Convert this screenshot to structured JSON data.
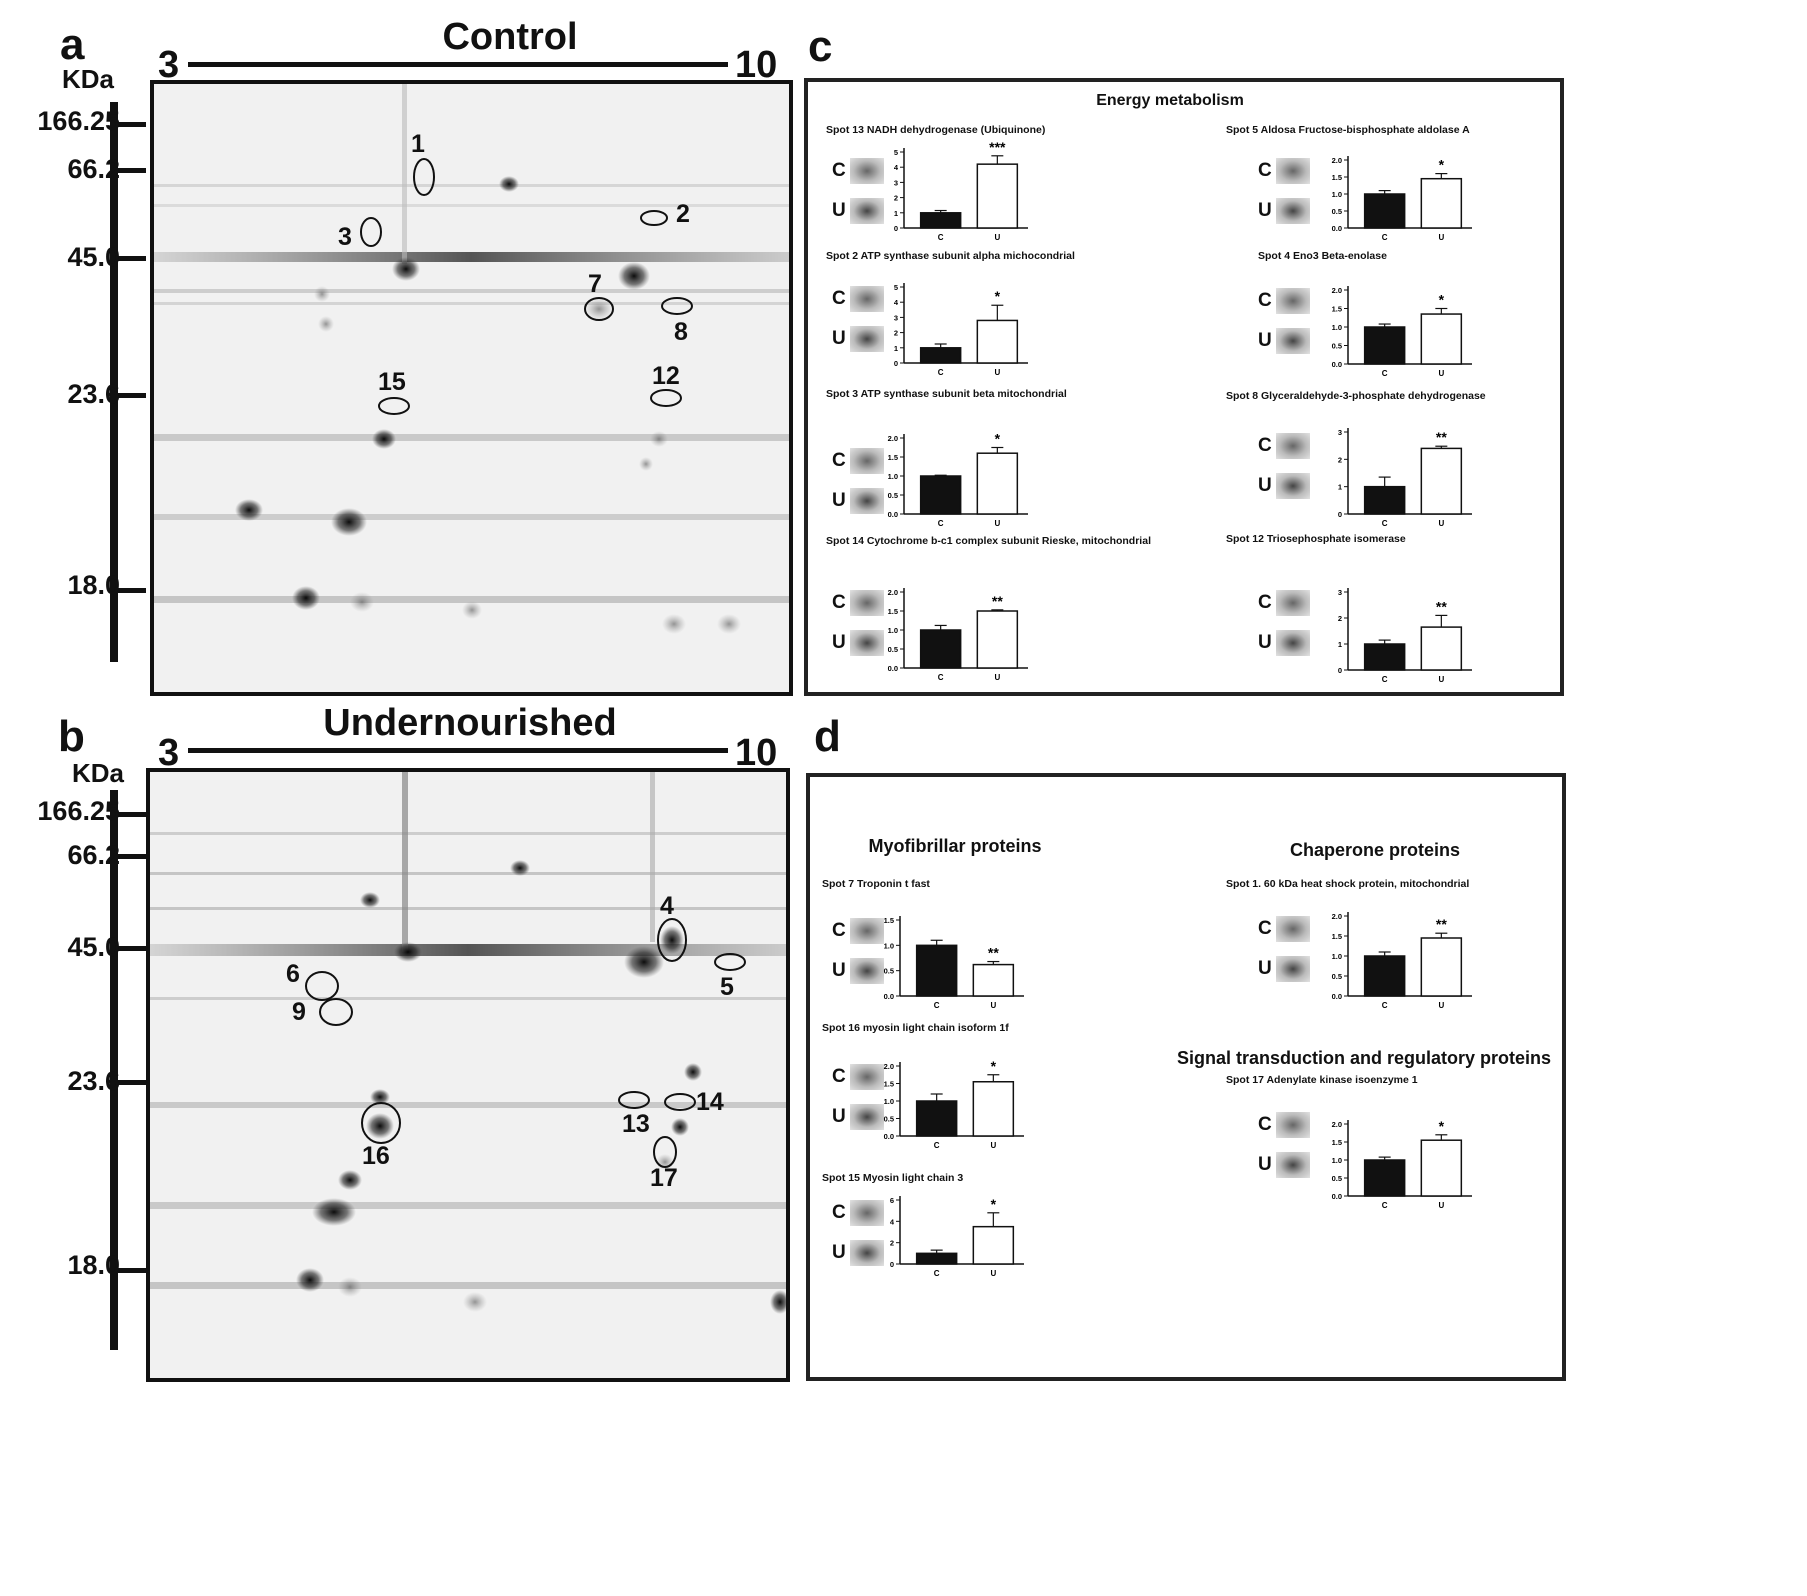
{
  "panels": {
    "a": {
      "label": "a",
      "title": "Control"
    },
    "b": {
      "label": "b",
      "title": "Undernourished"
    },
    "c": {
      "label": "c"
    },
    "d": {
      "label": "d"
    }
  },
  "ph_axis": {
    "start": "3",
    "end": "10"
  },
  "kda_label": "KDa",
  "mw_markers": [
    "166.25",
    "66.2",
    "45.0",
    "23.6",
    "18.0"
  ],
  "gel_a_spots": [
    "1",
    "2",
    "3",
    "7",
    "8",
    "12",
    "15"
  ],
  "gel_b_spots": [
    "4",
    "5",
    "6",
    "9",
    "13",
    "14",
    "16",
    "17"
  ],
  "groups": {
    "control": "C",
    "undernourished": "U"
  },
  "sections": {
    "energy": "Energy metabolism",
    "myofibrillar": "Myofibrillar proteins",
    "chaperone": "Chaperone proteins",
    "signal": "Signal transduction and regulatory proteins"
  },
  "chart_data": [
    {
      "type": "bar",
      "title": "Spot 13  NADH dehydrogenase (Ubiquinone)",
      "categories": [
        "C",
        "U"
      ],
      "values": [
        1.0,
        4.2
      ],
      "errors": [
        0.15,
        0.55
      ],
      "ylim": [
        0,
        5
      ],
      "yticks": [
        "0",
        "1",
        "2",
        "3",
        "4",
        "5"
      ],
      "significance": "***"
    },
    {
      "type": "bar",
      "title": "Spot 2 ATP synthase subunit alpha michocondrial",
      "categories": [
        "C",
        "U"
      ],
      "values": [
        1.0,
        2.8
      ],
      "errors": [
        0.25,
        1.0
      ],
      "ylim": [
        0,
        5
      ],
      "yticks": [
        "0",
        "1",
        "2",
        "3",
        "4",
        "5"
      ],
      "significance": "*"
    },
    {
      "type": "bar",
      "title": "Spot 3 ATP synthase subunit beta mitochondrial",
      "categories": [
        "C",
        "U"
      ],
      "values": [
        1.0,
        1.6
      ],
      "errors": [
        0.02,
        0.15
      ],
      "ylim": [
        0,
        2
      ],
      "yticks": [
        "0.0",
        "0.5",
        "1.0",
        "1.5",
        "2.0"
      ],
      "significance": "*"
    },
    {
      "type": "bar",
      "title": "Spot 14 Cytochrome b-c1 complex subunit Rieske, mitochondrial",
      "categories": [
        "C",
        "U"
      ],
      "values": [
        1.0,
        1.5
      ],
      "errors": [
        0.12,
        0.03
      ],
      "ylim": [
        0,
        2
      ],
      "yticks": [
        "0.0",
        "0.5",
        "1.0",
        "1.5",
        "2.0"
      ],
      "significance": "**"
    },
    {
      "type": "bar",
      "title": "Spot  5 Aldosa Fructose-bisphosphate aldolase A",
      "categories": [
        "C",
        "U"
      ],
      "values": [
        1.0,
        1.45
      ],
      "errors": [
        0.1,
        0.15
      ],
      "ylim": [
        0,
        2
      ],
      "yticks": [
        "0.0",
        "0.5",
        "1.0",
        "1.5",
        "2.0"
      ],
      "significance": "*"
    },
    {
      "type": "bar",
      "title": "Spot 4 Eno3 Beta-enolase",
      "categories": [
        "C",
        "U"
      ],
      "values": [
        1.0,
        1.35
      ],
      "errors": [
        0.08,
        0.15
      ],
      "ylim": [
        0,
        2
      ],
      "yticks": [
        "0.0",
        "0.5",
        "1.0",
        "1.5",
        "2.0"
      ],
      "significance": "*"
    },
    {
      "type": "bar",
      "title": "Spot  8 Glyceraldehyde-3-phosphate dehydrogenase",
      "categories": [
        "C",
        "U"
      ],
      "values": [
        1.0,
        2.4
      ],
      "errors": [
        0.35,
        0.08
      ],
      "ylim": [
        0,
        3
      ],
      "yticks": [
        "0",
        "1",
        "2",
        "3"
      ],
      "significance": "**"
    },
    {
      "type": "bar",
      "title": "Spot 12 Triosephosphate isomerase",
      "categories": [
        "C",
        "U"
      ],
      "values": [
        1.0,
        1.65
      ],
      "errors": [
        0.15,
        0.45
      ],
      "ylim": [
        0,
        3
      ],
      "yticks": [
        "0",
        "1",
        "2",
        "3"
      ],
      "significance": "**"
    },
    {
      "type": "bar",
      "title": "Spot  7 Troponin t fast",
      "categories": [
        "C",
        "U"
      ],
      "values": [
        1.0,
        0.62
      ],
      "errors": [
        0.1,
        0.06
      ],
      "ylim": [
        0,
        1.5
      ],
      "yticks": [
        "0.0",
        "0.5",
        "1.0",
        "1.5"
      ],
      "significance": "**"
    },
    {
      "type": "bar",
      "title": "Spot  16 myosin light chain isoform 1f",
      "categories": [
        "C",
        "U"
      ],
      "values": [
        1.0,
        1.55
      ],
      "errors": [
        0.2,
        0.2
      ],
      "ylim": [
        0,
        2
      ],
      "yticks": [
        "0.0",
        "0.5",
        "1.0",
        "1.5",
        "2.0"
      ],
      "significance": "*"
    },
    {
      "type": "bar",
      "title": "Spot 15 Myosin light chain 3",
      "categories": [
        "C",
        "U"
      ],
      "values": [
        1.0,
        3.5
      ],
      "errors": [
        0.3,
        1.3
      ],
      "ylim": [
        0,
        6
      ],
      "yticks": [
        "0",
        "2",
        "4",
        "6"
      ],
      "significance": "*"
    },
    {
      "type": "bar",
      "title": "Spot  1. 60 kDa heat shock protein, mitochondrial",
      "categories": [
        "C",
        "U"
      ],
      "values": [
        1.0,
        1.45
      ],
      "errors": [
        0.1,
        0.12
      ],
      "ylim": [
        0,
        2
      ],
      "yticks": [
        "0.0",
        "0.5",
        "1.0",
        "1.5",
        "2.0"
      ],
      "significance": "**"
    },
    {
      "type": "bar",
      "title": "Spot 17 Adenylate kinase isoenzyme 1",
      "categories": [
        "C",
        "U"
      ],
      "values": [
        1.0,
        1.55
      ],
      "errors": [
        0.08,
        0.15
      ],
      "ylim": [
        0,
        2
      ],
      "yticks": [
        "0.0",
        "0.5",
        "1.0",
        "1.5",
        "2.0"
      ],
      "significance": "*"
    }
  ]
}
